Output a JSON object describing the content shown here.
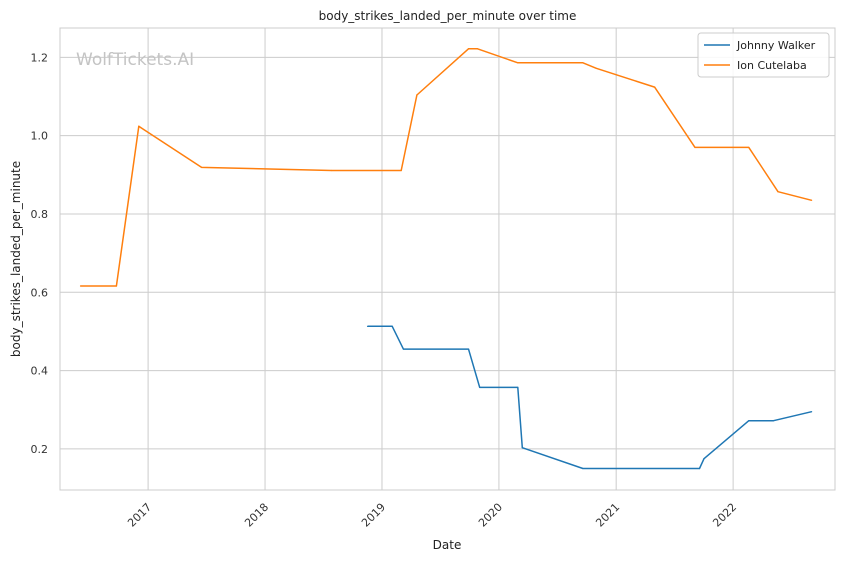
{
  "chart_data": {
    "type": "line",
    "title": "body_strikes_landed_per_minute over time",
    "xlabel": "Date",
    "ylabel": "body_strikes_landed_per_minute",
    "watermark": "WolfTickets.AI",
    "x_ticks": [
      "2017",
      "2018",
      "2019",
      "2020",
      "2021",
      "2022"
    ],
    "y_ticks": [
      "0.2",
      "0.4",
      "0.6",
      "0.8",
      "1.0",
      "1.2"
    ],
    "xlim": [
      "2016-04-01",
      "2022-11-15"
    ],
    "ylim": [
      0.095,
      1.275
    ],
    "grid": true,
    "legend_position": "top-right",
    "series": [
      {
        "name": "Johnny Walker",
        "color": "#1f77b4",
        "points": [
          {
            "x": "2018-11-17",
            "y": 0.513
          },
          {
            "x": "2019-02-02",
            "y": 0.513
          },
          {
            "x": "2019-03-09",
            "y": 0.455
          },
          {
            "x": "2019-09-28",
            "y": 0.455
          },
          {
            "x": "2019-11-02",
            "y": 0.357
          },
          {
            "x": "2020-02-29",
            "y": 0.357
          },
          {
            "x": "2020-03-14",
            "y": 0.203
          },
          {
            "x": "2020-09-19",
            "y": 0.15
          },
          {
            "x": "2021-09-18",
            "y": 0.15
          },
          {
            "x": "2021-10-02",
            "y": 0.175
          },
          {
            "x": "2022-02-19",
            "y": 0.272
          },
          {
            "x": "2022-05-07",
            "y": 0.272
          },
          {
            "x": "2022-09-03",
            "y": 0.295
          }
        ]
      },
      {
        "name": "Ion Cutelaba",
        "color": "#ff7f0e",
        "points": [
          {
            "x": "2016-06-04",
            "y": 0.616
          },
          {
            "x": "2016-09-24",
            "y": 0.616
          },
          {
            "x": "2016-12-03",
            "y": 1.024
          },
          {
            "x": "2017-06-17",
            "y": 0.919
          },
          {
            "x": "2018-07-28",
            "y": 0.911
          },
          {
            "x": "2019-03-02",
            "y": 0.911
          },
          {
            "x": "2019-04-20",
            "y": 1.104
          },
          {
            "x": "2019-09-28",
            "y": 1.222
          },
          {
            "x": "2019-10-26",
            "y": 1.222
          },
          {
            "x": "2020-02-29",
            "y": 1.186
          },
          {
            "x": "2020-09-19",
            "y": 1.186
          },
          {
            "x": "2020-10-31",
            "y": 1.172
          },
          {
            "x": "2021-05-01",
            "y": 1.124
          },
          {
            "x": "2021-09-04",
            "y": 0.97
          },
          {
            "x": "2022-02-19",
            "y": 0.97
          },
          {
            "x": "2022-05-21",
            "y": 0.857
          },
          {
            "x": "2022-09-03",
            "y": 0.835
          }
        ]
      }
    ]
  }
}
